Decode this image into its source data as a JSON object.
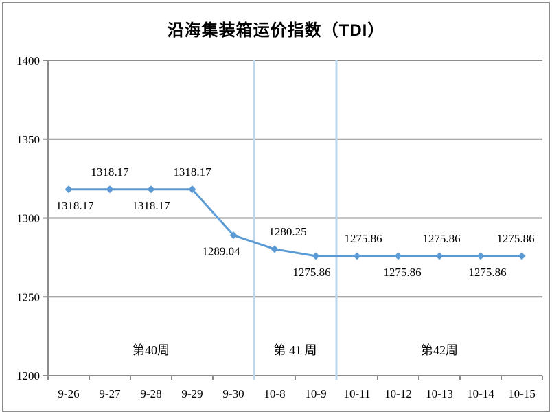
{
  "chart_data": {
    "type": "line",
    "title": "沿海集装箱运价指数（TDI）",
    "xlabel": "",
    "ylabel": "",
    "categories": [
      "9-26",
      "9-27",
      "9-28",
      "9-29",
      "9-30",
      "10-8",
      "10-9",
      "10-11",
      "10-12",
      "10-13",
      "10-14",
      "10-15"
    ],
    "series": [
      {
        "name": "TDI",
        "values": [
          1318.17,
          1318.17,
          1318.17,
          1318.17,
          1289.04,
          1280.25,
          1275.86,
          1275.86,
          1275.86,
          1275.86,
          1275.86,
          1275.86
        ]
      }
    ],
    "data_labels": [
      "1318.17",
      "1318.17",
      "1318.17",
      "1318.17",
      "1289.04",
      "1280.25",
      "1275.86",
      "1275.86",
      "1275.86",
      "1275.86",
      "1275.86",
      "1275.86"
    ],
    "label_side": [
      "below",
      "above",
      "below",
      "above",
      "below",
      "above",
      "below",
      "above",
      "below",
      "above",
      "below",
      "above"
    ],
    "label_dx": [
      9,
      0,
      0,
      0,
      -18,
      19,
      -6,
      9,
      6,
      3,
      10,
      -9
    ],
    "ylim": [
      1200,
      1400
    ],
    "yticks": [
      1200,
      1250,
      1300,
      1350,
      1400
    ],
    "grid": true,
    "legend_position": "none",
    "separators_after_category": [
      "9-30",
      "10-9"
    ],
    "week_annotations": [
      {
        "label": "第40周",
        "from_index": 0,
        "to_index": 4
      },
      {
        "label": "第 41 周",
        "from_index": 5,
        "to_index": 6
      },
      {
        "label": "第42周",
        "from_index": 7,
        "to_index": 11
      }
    ],
    "colors": {
      "line": "#5b9bd5",
      "marker": "#5b9bd5",
      "separator": "#bdd7ee",
      "grid": "#8c8c8c",
      "axis": "#8c8c8c",
      "text": "#000000",
      "frame_border": "#8c8c8c",
      "background": "#ffffff"
    }
  }
}
